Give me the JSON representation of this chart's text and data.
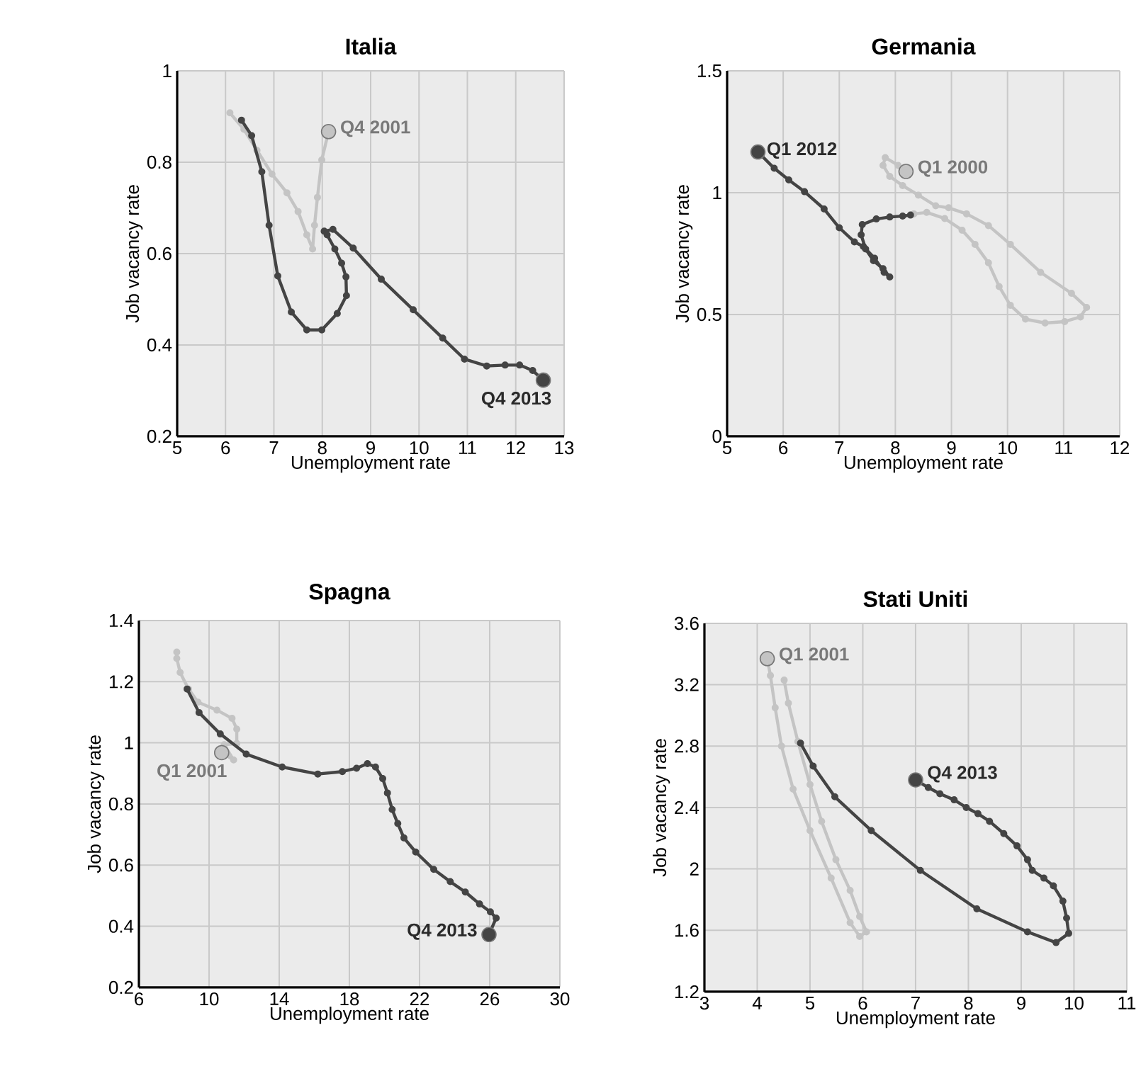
{
  "chart_data": [
    {
      "type": "line",
      "title": "Italia",
      "xlabel": "Unemployment  rate",
      "ylabel": "Job vacancy rate",
      "grid": true,
      "marker": "circle",
      "xlim": [
        5,
        13
      ],
      "ylim": [
        0.2,
        1
      ],
      "xticks": [
        5,
        6,
        7,
        8,
        9,
        10,
        11,
        12,
        13
      ],
      "yticks": [
        0.2,
        0.4,
        0.6,
        0.8,
        1
      ],
      "series": [
        {
          "color": "#c4c4c4",
          "x": [
            8.13,
            7.99,
            7.9,
            7.84,
            7.8,
            7.68,
            7.5,
            7.27,
            6.96,
            6.65,
            6.38,
            6.09
          ],
          "values": [
            0.867,
            0.805,
            0.723,
            0.662,
            0.61,
            0.641,
            0.692,
            0.733,
            0.774,
            0.826,
            0.872,
            0.908
          ]
        },
        {
          "color": "#444444",
          "x": [
            6.33,
            6.54,
            6.75,
            6.9,
            7.08,
            7.36,
            7.68,
            7.99,
            8.31,
            8.5,
            8.49,
            8.4,
            8.26,
            8.1,
            8.04,
            8.22,
            8.64,
            9.22,
            9.88,
            10.49,
            10.94,
            11.4,
            11.78,
            12.08,
            12.35,
            12.57
          ],
          "values": [
            0.892,
            0.858,
            0.779,
            0.662,
            0.551,
            0.472,
            0.433,
            0.433,
            0.469,
            0.508,
            0.549,
            0.579,
            0.61,
            0.641,
            0.649,
            0.653,
            0.612,
            0.544,
            0.477,
            0.415,
            0.369,
            0.354,
            0.356,
            0.356,
            0.344,
            0.323
          ]
        },
        {
          "type": "scatter",
          "color": "#c4c4c4",
          "x": [
            8.13
          ],
          "values": [
            0.867
          ]
        },
        {
          "type": "scatter",
          "color": "#444444",
          "x": [
            12.57
          ],
          "values": [
            0.323
          ]
        }
      ],
      "annotations": [
        {
          "text": "Q4 2001",
          "x": 8.13,
          "y": 0.867
        },
        {
          "text": "Q4 2013",
          "x": 12.57,
          "y": 0.323
        }
      ]
    },
    {
      "type": "line",
      "title": "Germania",
      "xlabel": "Unemployment  rate",
      "ylabel": "Job vacancy rate",
      "grid": true,
      "marker": "circle",
      "xlim": [
        5,
        12
      ],
      "ylim": [
        0,
        1.5
      ],
      "xticks": [
        5,
        6,
        7,
        8,
        9,
        10,
        11,
        12
      ],
      "yticks": [
        0,
        0.5,
        1,
        1.5
      ],
      "series": [
        {
          "color": "#c4c4c4",
          "x": [
            8.19,
            8.05,
            7.82,
            7.78,
            7.9,
            8.13,
            8.41,
            8.72,
            8.95,
            9.27,
            9.66,
            10.05,
            10.59,
            11.14,
            11.41,
            11.3,
            11.02,
            10.67,
            10.32,
            10.05,
            9.85,
            9.66,
            9.42,
            9.19,
            8.88,
            8.56,
            8.33
          ],
          "values": [
            1.087,
            1.112,
            1.144,
            1.112,
            1.067,
            1.029,
            0.99,
            0.946,
            0.938,
            0.913,
            0.865,
            0.788,
            0.673,
            0.587,
            0.529,
            0.49,
            0.471,
            0.465,
            0.481,
            0.538,
            0.615,
            0.712,
            0.788,
            0.846,
            0.894,
            0.919,
            0.913
          ]
        },
        {
          "color": "#444444",
          "x": [
            8.27,
            8.13,
            7.9,
            7.66,
            7.41,
            7.39,
            7.47,
            7.61,
            7.78,
            7.9,
            7.8,
            7.63,
            7.43,
            7.27,
            7.0,
            6.73,
            6.38,
            6.1,
            5.84,
            5.55
          ],
          "values": [
            0.908,
            0.904,
            0.9,
            0.892,
            0.869,
            0.827,
            0.769,
            0.721,
            0.688,
            0.654,
            0.673,
            0.731,
            0.779,
            0.798,
            0.856,
            0.933,
            1.004,
            1.052,
            1.1,
            1.167
          ]
        },
        {
          "type": "scatter",
          "color": "#c4c4c4",
          "x": [
            8.19
          ],
          "values": [
            1.087
          ]
        },
        {
          "type": "scatter",
          "color": "#444444",
          "x": [
            5.55
          ],
          "values": [
            1.167
          ]
        }
      ],
      "annotations": [
        {
          "text": "Q1 2000",
          "x": 8.19,
          "y": 1.087
        },
        {
          "text": "Q1 2012",
          "x": 5.55,
          "y": 1.167
        }
      ]
    },
    {
      "type": "line",
      "title": "Spagna",
      "xlabel": "Unemployment  rate",
      "ylabel": "Job vacancy rate",
      "grid": true,
      "marker": "circle",
      "xlim": [
        6,
        30
      ],
      "ylim": [
        0.2,
        1.4
      ],
      "xticks": [
        6,
        10,
        14,
        18,
        22,
        26,
        30
      ],
      "yticks": [
        0.2,
        0.4,
        0.6,
        0.8,
        1,
        1.2,
        1.4
      ],
      "series": [
        {
          "color": "#c4c4c4",
          "x": [
            10.72,
            11.4,
            10.86,
            11.58,
            11.58,
            11.31,
            10.45,
            9.37,
            8.83,
            8.35,
            8.16,
            8.16
          ],
          "values": [
            0.968,
            0.944,
            0.994,
            0.998,
            1.045,
            1.08,
            1.107,
            1.133,
            1.176,
            1.23,
            1.276,
            1.297
          ]
        },
        {
          "color": "#444444",
          "x": [
            8.75,
            9.43,
            10.64,
            12.12,
            14.17,
            16.2,
            17.6,
            18.41,
            19.03,
            19.49,
            19.9,
            20.17,
            20.44,
            20.76,
            21.11,
            21.78,
            22.81,
            23.75,
            24.61,
            25.42,
            26.04,
            26.37,
            25.96
          ],
          "values": [
            1.176,
            1.099,
            1.029,
            0.963,
            0.921,
            0.898,
            0.906,
            0.917,
            0.932,
            0.921,
            0.883,
            0.836,
            0.782,
            0.736,
            0.689,
            0.643,
            0.586,
            0.546,
            0.512,
            0.473,
            0.447,
            0.427,
            0.373
          ]
        },
        {
          "type": "scatter",
          "color": "#c4c4c4",
          "x": [
            10.72
          ],
          "values": [
            0.968
          ]
        },
        {
          "type": "scatter",
          "color": "#444444",
          "x": [
            25.96
          ],
          "values": [
            0.373
          ]
        }
      ],
      "annotations": [
        {
          "text": "Q1 2001",
          "x": 10.72,
          "y": 0.968
        },
        {
          "text": "Q4 2013",
          "x": 25.96,
          "y": 0.373
        }
      ]
    },
    {
      "type": "line",
      "title": "Stati Uniti",
      "xlabel": "Unemployment  rate",
      "ylabel": "Job vacancy rate",
      "grid": true,
      "marker": "circle",
      "xlim": [
        3,
        11
      ],
      "ylim": [
        1.2,
        3.6
      ],
      "xticks": [
        3,
        4,
        5,
        6,
        7,
        8,
        9,
        10,
        11
      ],
      "yticks": [
        1.2,
        1.6,
        2,
        2.4,
        2.8,
        3.2,
        3.6
      ],
      "series": [
        {
          "color": "#c4c4c4",
          "x": [
            4.19,
            4.25,
            4.34,
            4.46,
            4.68,
            5.0,
            5.4,
            5.76,
            5.94,
            6.07,
            5.94,
            5.76,
            5.49,
            5.22,
            5.0,
            4.77,
            4.59,
            4.51
          ],
          "values": [
            3.37,
            3.26,
            3.05,
            2.8,
            2.52,
            2.25,
            1.94,
            1.65,
            1.56,
            1.59,
            1.69,
            1.86,
            2.06,
            2.31,
            2.55,
            2.83,
            3.08,
            3.23
          ]
        },
        {
          "color": "#444444",
          "x": [
            4.82,
            5.06,
            5.47,
            6.16,
            7.09,
            8.16,
            9.12,
            9.66,
            9.9,
            9.86,
            9.79,
            9.61,
            9.43,
            9.21,
            9.12,
            8.92,
            8.67,
            8.4,
            8.18,
            7.96,
            7.73,
            7.46,
            7.24,
            7.0
          ],
          "values": [
            2.82,
            2.67,
            2.47,
            2.25,
            1.99,
            1.74,
            1.59,
            1.52,
            1.58,
            1.68,
            1.79,
            1.89,
            1.94,
            1.99,
            2.06,
            2.15,
            2.23,
            2.31,
            2.36,
            2.4,
            2.45,
            2.49,
            2.53,
            2.58
          ]
        },
        {
          "type": "scatter",
          "color": "#c4c4c4",
          "x": [
            4.19
          ],
          "values": [
            3.37
          ]
        },
        {
          "type": "scatter",
          "color": "#444444",
          "x": [
            7.0
          ],
          "values": [
            2.58
          ]
        }
      ],
      "annotations": [
        {
          "text": "Q1 2001",
          "x": 4.19,
          "y": 3.37
        },
        {
          "text": "Q4 2013",
          "x": 7.0,
          "y": 2.58
        }
      ]
    }
  ]
}
